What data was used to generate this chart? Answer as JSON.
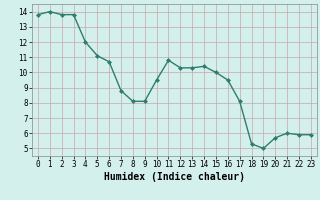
{
  "x": [
    0,
    1,
    2,
    3,
    4,
    5,
    6,
    7,
    8,
    9,
    10,
    11,
    12,
    13,
    14,
    15,
    16,
    17,
    18,
    19,
    20,
    21,
    22,
    23
  ],
  "y": [
    13.8,
    14.0,
    13.8,
    13.8,
    12.0,
    11.1,
    10.7,
    8.8,
    8.1,
    8.1,
    9.5,
    10.8,
    10.3,
    10.3,
    10.4,
    10.0,
    9.5,
    8.1,
    5.3,
    5.0,
    5.7,
    6.0,
    5.9,
    5.9
  ],
  "line_color": "#2e7d6e",
  "marker": "D",
  "marker_size": 2.0,
  "bg_color": "#d4f0ec",
  "grid_color": "#c8a8a8",
  "xlabel": "Humidex (Indice chaleur)",
  "xlim": [
    -0.5,
    23.5
  ],
  "ylim": [
    4.5,
    14.5
  ],
  "yticks": [
    5,
    6,
    7,
    8,
    9,
    10,
    11,
    12,
    13,
    14
  ],
  "xticks": [
    0,
    1,
    2,
    3,
    4,
    5,
    6,
    7,
    8,
    9,
    10,
    11,
    12,
    13,
    14,
    15,
    16,
    17,
    18,
    19,
    20,
    21,
    22,
    23
  ],
  "tick_label_fontsize": 5.5,
  "xlabel_fontsize": 7.0,
  "linewidth": 1.0,
  "figwidth": 3.2,
  "figheight": 2.0,
  "dpi": 100
}
